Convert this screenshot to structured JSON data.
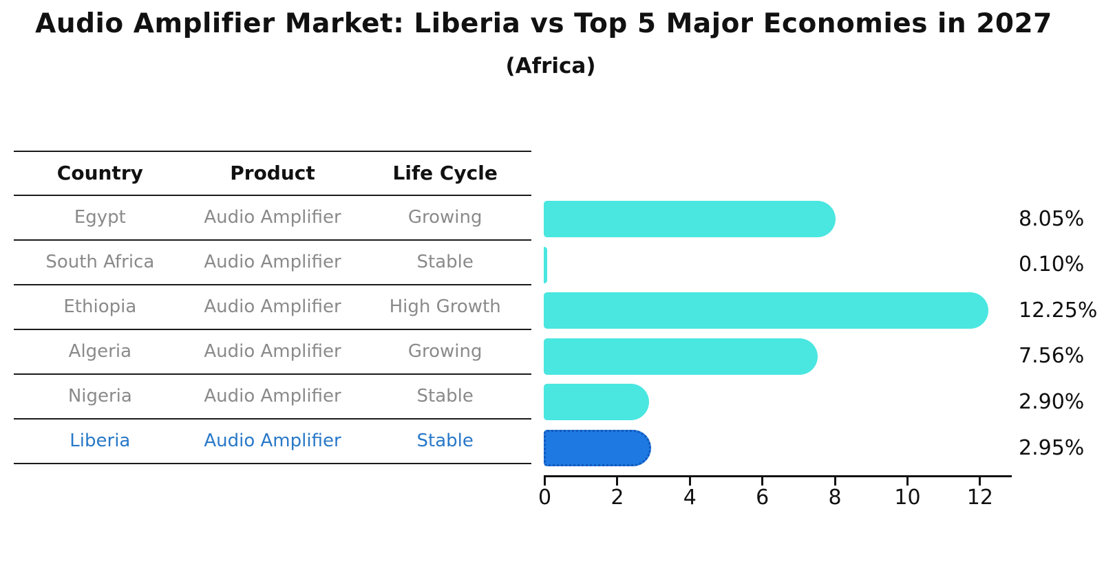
{
  "chart_data": {
    "type": "bar",
    "orientation": "horizontal",
    "title": "Audio Amplifier Market: Liberia vs Top 5 Major Economies in 2027",
    "subtitle": "(Africa)",
    "categories": [
      "Egypt",
      "South Africa",
      "Ethiopia",
      "Algeria",
      "Nigeria",
      "Liberia"
    ],
    "values": [
      8.05,
      0.1,
      12.25,
      7.56,
      2.9,
      2.95
    ],
    "value_labels": [
      "8.05%",
      "0.10%",
      "12.25%",
      "7.56%",
      "2.90%",
      "2.95%"
    ],
    "x_ticks": [
      0,
      2,
      4,
      6,
      8,
      10,
      12
    ],
    "xlim": [
      0,
      12.9
    ],
    "grid": false,
    "legend": "none",
    "highlight_index": 5,
    "colors": {
      "bar": "#4AE6E0",
      "highlight_bar": "#1E79E2",
      "highlight_border": "#1356B8",
      "highlight_text": "#2878C8",
      "row_text": "#8A8A8A",
      "header_text": "#111111",
      "axis": "#111111"
    }
  },
  "table": {
    "headers": [
      "Country",
      "Product",
      "Life Cycle"
    ],
    "rows": [
      {
        "country": "Egypt",
        "product": "Audio Amplifier",
        "life_cycle": "Growing",
        "highlight": false
      },
      {
        "country": "South Africa",
        "product": "Audio Amplifier",
        "life_cycle": "Stable",
        "highlight": false
      },
      {
        "country": "Ethiopia",
        "product": "Audio Amplifier",
        "life_cycle": "High Growth",
        "highlight": false
      },
      {
        "country": "Algeria",
        "product": "Audio Amplifier",
        "life_cycle": "Growing",
        "highlight": false
      },
      {
        "country": "Nigeria",
        "product": "Audio Amplifier",
        "life_cycle": "Stable",
        "highlight": false
      },
      {
        "country": "Liberia",
        "product": "Audio Amplifier",
        "life_cycle": "Stable",
        "highlight": true
      }
    ]
  }
}
